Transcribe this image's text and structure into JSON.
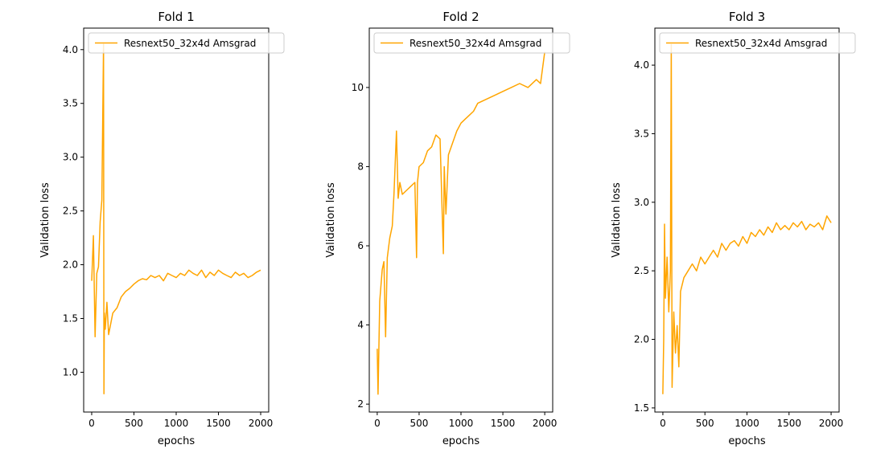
{
  "chart_data": [
    {
      "type": "line",
      "title": "Fold 1",
      "xlabel": "epochs",
      "ylabel": "Validation loss",
      "xlim": [
        -95,
        2095
      ],
      "ylim": [
        0.63,
        4.2
      ],
      "x_ticks": [
        0,
        500,
        1000,
        1500,
        2000
      ],
      "y_ticks": [
        1.0,
        1.5,
        2.0,
        2.5,
        3.0,
        3.5,
        4.0
      ],
      "y_tick_labels": [
        "1.0",
        "1.5",
        "2.0",
        "2.5",
        "3.0",
        "3.5",
        "4.0"
      ],
      "legend_position": "top-left",
      "series": [
        {
          "name": "Resnext50_32x4d Amsgrad",
          "color": "#FFA500",
          "x": [
            0,
            20,
            40,
            60,
            80,
            100,
            120,
            140,
            145,
            150,
            160,
            180,
            200,
            250,
            300,
            350,
            400,
            450,
            500,
            550,
            600,
            650,
            700,
            750,
            800,
            850,
            900,
            950,
            1000,
            1050,
            1100,
            1150,
            1200,
            1250,
            1300,
            1350,
            1400,
            1450,
            1500,
            1550,
            1600,
            1650,
            1700,
            1750,
            1800,
            1850,
            1900,
            1950,
            2000
          ],
          "y": [
            1.85,
            2.27,
            1.33,
            1.92,
            1.98,
            2.4,
            2.6,
            4.05,
            0.8,
            1.55,
            1.4,
            1.65,
            1.35,
            1.55,
            1.6,
            1.7,
            1.75,
            1.78,
            1.82,
            1.85,
            1.87,
            1.86,
            1.9,
            1.88,
            1.9,
            1.85,
            1.92,
            1.9,
            1.88,
            1.92,
            1.9,
            1.95,
            1.92,
            1.9,
            1.95,
            1.88,
            1.93,
            1.9,
            1.95,
            1.92,
            1.9,
            1.88,
            1.93,
            1.9,
            1.92,
            1.88,
            1.9,
            1.93,
            1.95
          ]
        }
      ]
    },
    {
      "type": "line",
      "title": "Fold 2",
      "xlabel": "epochs",
      "ylabel": "Validation loss",
      "xlim": [
        -95,
        2095
      ],
      "ylim": [
        1.8,
        11.5
      ],
      "x_ticks": [
        0,
        500,
        1000,
        1500,
        2000
      ],
      "y_ticks": [
        2,
        4,
        6,
        8,
        10
      ],
      "y_tick_labels": [
        "2",
        "4",
        "6",
        "8",
        "10"
      ],
      "legend_position": "top-left",
      "series": [
        {
          "name": "Resnext50_32x4d Amsgrad",
          "color": "#FFA500",
          "x": [
            0,
            10,
            30,
            60,
            80,
            100,
            120,
            150,
            180,
            200,
            230,
            250,
            270,
            300,
            350,
            400,
            450,
            470,
            480,
            500,
            550,
            600,
            650,
            700,
            750,
            790,
            800,
            820,
            850,
            900,
            950,
            1000,
            1050,
            1100,
            1150,
            1200,
            1300,
            1400,
            1500,
            1600,
            1700,
            1800,
            1900,
            1950,
            2000
          ],
          "y": [
            3.4,
            2.25,
            4.6,
            5.4,
            5.6,
            3.7,
            5.7,
            6.2,
            6.5,
            7.3,
            8.9,
            7.2,
            7.6,
            7.3,
            7.4,
            7.5,
            7.6,
            5.7,
            7.6,
            8.0,
            8.1,
            8.4,
            8.5,
            8.8,
            8.7,
            5.8,
            8.0,
            6.8,
            8.3,
            8.6,
            8.9,
            9.1,
            9.2,
            9.3,
            9.4,
            9.6,
            9.7,
            9.8,
            9.9,
            10.0,
            10.1,
            10.0,
            10.2,
            10.1,
            10.9
          ]
        }
      ]
    },
    {
      "type": "line",
      "title": "Fold 3",
      "xlabel": "epochs",
      "ylabel": "Validation loss",
      "xlim": [
        -95,
        2095
      ],
      "ylim": [
        1.47,
        4.27
      ],
      "x_ticks": [
        0,
        500,
        1000,
        1500,
        2000
      ],
      "y_ticks": [
        1.5,
        2.0,
        2.5,
        3.0,
        3.5,
        4.0
      ],
      "y_tick_labels": [
        "1.5",
        "2.0",
        "2.5",
        "3.0",
        "3.5",
        "4.0"
      ],
      "legend_position": "top-left",
      "series": [
        {
          "name": "Resnext50_32x4d Amsgrad",
          "color": "#FFA500",
          "x": [
            0,
            10,
            20,
            30,
            50,
            70,
            90,
            100,
            110,
            130,
            150,
            170,
            190,
            210,
            250,
            300,
            350,
            400,
            450,
            500,
            550,
            600,
            650,
            700,
            750,
            800,
            850,
            900,
            950,
            1000,
            1050,
            1100,
            1150,
            1200,
            1250,
            1300,
            1350,
            1400,
            1450,
            1500,
            1550,
            1600,
            1650,
            1700,
            1750,
            1800,
            1850,
            1900,
            1950,
            2000
          ],
          "y": [
            1.6,
            2.0,
            2.84,
            2.3,
            2.6,
            2.2,
            2.5,
            4.15,
            1.65,
            2.2,
            1.9,
            2.1,
            1.8,
            2.35,
            2.45,
            2.5,
            2.55,
            2.5,
            2.6,
            2.55,
            2.6,
            2.65,
            2.6,
            2.7,
            2.65,
            2.7,
            2.72,
            2.68,
            2.75,
            2.7,
            2.78,
            2.75,
            2.8,
            2.76,
            2.82,
            2.78,
            2.85,
            2.8,
            2.83,
            2.8,
            2.85,
            2.82,
            2.86,
            2.8,
            2.84,
            2.82,
            2.85,
            2.8,
            2.9,
            2.85
          ]
        }
      ]
    }
  ]
}
